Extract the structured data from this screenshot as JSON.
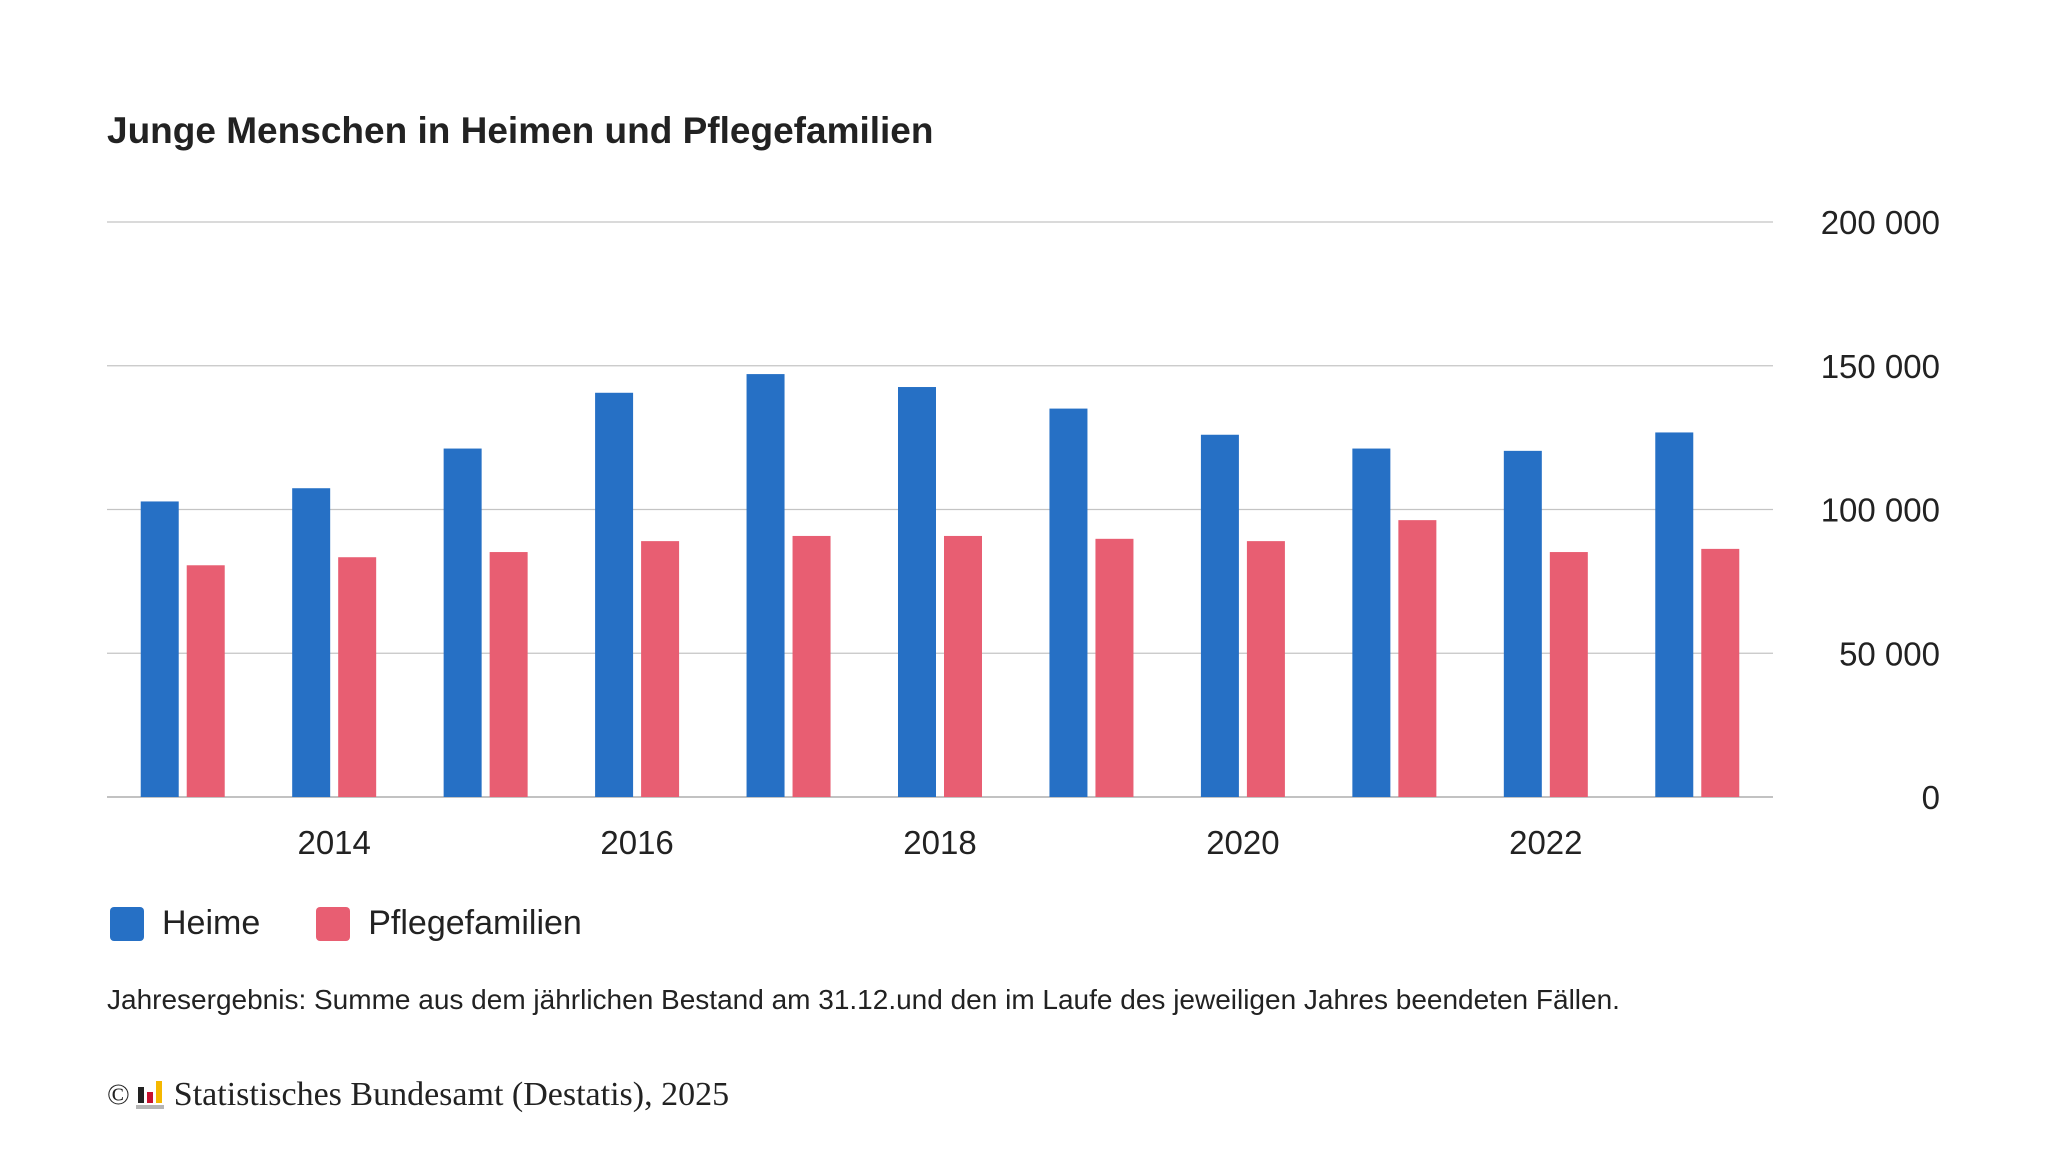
{
  "chart_data": {
    "type": "bar",
    "title": "Junge Menschen in Heimen und Pflegefamilien",
    "xlabel": "",
    "ylabel": "",
    "categories": [
      "2013",
      "2014",
      "2015",
      "2016",
      "2017",
      "2018",
      "2019",
      "2020",
      "2021",
      "2022",
      "2023"
    ],
    "x_tick_labels": [
      "2014",
      "2016",
      "2018",
      "2020",
      "2022"
    ],
    "y_tick_labels": [
      "0",
      "50 000",
      "100 000",
      "150 000",
      "200 000"
    ],
    "y_ticks": [
      0,
      50000,
      100000,
      150000,
      200000
    ],
    "ylim": [
      0,
      200000
    ],
    "grid": true,
    "y_axis_position": "right",
    "legend_position": "bottom-left",
    "series": [
      {
        "name": "Heime",
        "color": "#2670c5",
        "values": [
          102800,
          107400,
          121200,
          140600,
          147100,
          142600,
          135100,
          126000,
          121200,
          120400,
          126800
        ]
      },
      {
        "name": "Pflegefamilien",
        "color": "#e85e72",
        "values": [
          80600,
          83400,
          85200,
          89000,
          90800,
          90800,
          89800,
          89000,
          96300,
          85200,
          86300
        ]
      }
    ],
    "note": "Jahresergebnis: Summe aus dem jährlichen Bestand am 31.12.und den im Laufe des jeweiligen Jahres beendeten Fällen."
  },
  "credit": {
    "copyright_symbol": "©",
    "logo_icon": "destatis-logo-icon",
    "text": "Statistisches Bundesamt (Destatis), 2025"
  }
}
